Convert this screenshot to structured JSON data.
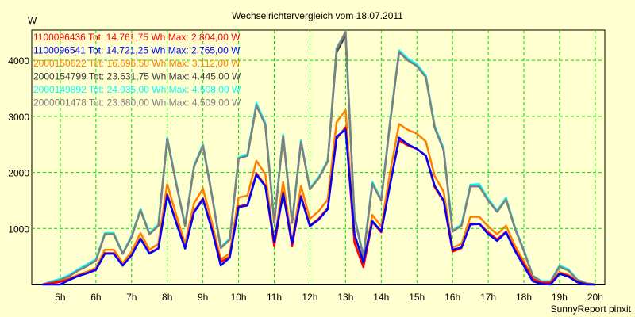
{
  "chart_data": {
    "type": "line",
    "title": "Wechselrichtervergleich vom 18.07.2011",
    "ylabel": "W",
    "xlabel": "",
    "footer": "SunnyReport pinxit",
    "xlim": [
      4.2,
      20.27
    ],
    "ylim": [
      0,
      4540
    ],
    "x_start": 4.5,
    "x_step": 0.25,
    "xticks": [
      5,
      6,
      7,
      8,
      9,
      10,
      11,
      12,
      13,
      14,
      15,
      16,
      17,
      18,
      19,
      20
    ],
    "xtick_labels": [
      "5h",
      "6h",
      "7h",
      "8h",
      "9h",
      "10h",
      "11h",
      "12h",
      "13h",
      "14h",
      "15h",
      "16h",
      "17h",
      "18h",
      "19h",
      "20h"
    ],
    "yticks": [
      1000,
      2000,
      3000,
      4000
    ],
    "ytick_labels": [
      "1000",
      "2000",
      "3000",
      "4000"
    ],
    "grid": true,
    "legend_position": "top-left",
    "series": [
      {
        "name": "2000154799",
        "legend": "2000154799 Tot: 23.631,75 Wh Max: 4.445,00 W",
        "color": "#3c3c3c",
        "values": [
          0,
          40,
          80,
          150,
          250,
          330,
          430,
          900,
          900,
          550,
          850,
          1330,
          900,
          1050,
          2600,
          1800,
          1050,
          2100,
          2480,
          1600,
          650,
          800,
          2250,
          2300,
          3200,
          2850,
          1100,
          2650,
          1100,
          2550,
          1700,
          1900,
          2200,
          4150,
          4445,
          1200,
          500,
          1800,
          1500,
          2900,
          4150,
          4000,
          3900,
          3700,
          2800,
          2400,
          950,
          1050,
          1750,
          1750,
          1500,
          1300,
          1520,
          1000,
          600,
          150,
          50,
          50,
          320,
          250,
          80,
          20,
          0
        ]
      },
      {
        "name": "2000149892",
        "legend": "2000149892 Tot: 24.035,00 Wh Max: 4.508,00 W",
        "color": "#00ffff",
        "values": [
          0,
          60,
          100,
          170,
          270,
          360,
          450,
          920,
          920,
          560,
          870,
          1350,
          920,
          1070,
          2620,
          1820,
          1070,
          2120,
          2500,
          1620,
          670,
          820,
          2270,
          2330,
          3240,
          2880,
          1120,
          2680,
          1120,
          2570,
          1720,
          1920,
          2220,
          4220,
          4508,
          1220,
          520,
          1830,
          1520,
          2930,
          4180,
          4030,
          3930,
          3730,
          2830,
          2430,
          970,
          1070,
          1780,
          1790,
          1530,
          1320,
          1550,
          1020,
          620,
          160,
          60,
          60,
          340,
          270,
          90,
          25,
          0
        ]
      },
      {
        "name": "2000001478",
        "legend": "2000001478 Tot: 23.680,00 Wh Max: 4.509,00 W",
        "color": "#808080",
        "values": [
          0,
          40,
          80,
          150,
          250,
          330,
          430,
          900,
          900,
          550,
          850,
          1330,
          900,
          1050,
          2600,
          1800,
          1050,
          2100,
          2480,
          1600,
          650,
          800,
          2250,
          2300,
          3200,
          2850,
          1100,
          2650,
          1100,
          2550,
          1700,
          1900,
          2200,
          4200,
          4509,
          1200,
          500,
          1800,
          1500,
          2900,
          4150,
          4000,
          3900,
          3700,
          2800,
          2400,
          950,
          1050,
          1750,
          1750,
          1500,
          1300,
          1520,
          1000,
          600,
          150,
          50,
          50,
          320,
          250,
          80,
          20,
          0
        ]
      },
      {
        "name": "2000150622",
        "legend": "2000150622 Tot: 16.696,50 Wh Max: 3.112,00 W",
        "color": "#ff8000",
        "values": [
          0,
          28,
          55,
          104,
          173,
          228,
          297,
          621,
          621,
          380,
          587,
          918,
          621,
          725,
          1794,
          1242,
          725,
          1449,
          1711,
          1104,
          449,
          552,
          1553,
          1587,
          2208,
          1967,
          759,
          1829,
          759,
          1760,
          1173,
          1311,
          1518,
          2898,
          3112,
          828,
          345,
          1242,
          1035,
          2001,
          2864,
          2760,
          2691,
          2553,
          1932,
          1656,
          656,
          725,
          1208,
          1208,
          1035,
          897,
          1049,
          690,
          414,
          104,
          35,
          35,
          221,
          173,
          55,
          14,
          0
        ]
      },
      {
        "name": "1100096436",
        "legend": "1100096436 Tot: 14.761,75 Wh Max: 2.804,00 W",
        "color": "#ff0000",
        "values": [
          0,
          25,
          50,
          93,
          155,
          205,
          267,
          558,
          558,
          341,
          527,
          825,
          558,
          651,
          1612,
          1116,
          651,
          1302,
          1538,
          992,
          403,
          496,
          1395,
          1426,
          1984,
          1767,
          682,
          1643,
          682,
          1581,
          1054,
          1178,
          1364,
          2604,
          2804,
          744,
          310,
          1116,
          930,
          1798,
          2573,
          2480,
          2418,
          2294,
          1736,
          1488,
          589,
          651,
          1085,
          1085,
          930,
          806,
          942,
          620,
          372,
          93,
          31,
          31,
          198,
          155,
          50,
          12,
          0
        ]
      },
      {
        "name": "1100096541",
        "legend": "1100096541 Tot: 14.721,25 Wh Max: 2.765,00 W",
        "color": "#0000ff",
        "values": [
          0,
          0,
          0,
          80,
          150,
          200,
          260,
          550,
          550,
          335,
          520,
          815,
          550,
          640,
          1590,
          1100,
          640,
          1285,
          1520,
          980,
          340,
          480,
          1380,
          1410,
          1960,
          1750,
          760,
          1620,
          740,
          1560,
          1040,
          1160,
          1345,
          2640,
          2765,
          900,
          400,
          1130,
          950,
          1780,
          2620,
          2500,
          2420,
          2300,
          1760,
          1500,
          620,
          660,
          1070,
          1080,
          900,
          780,
          930,
          600,
          330,
          60,
          10,
          0,
          190,
          140,
          40,
          0,
          0
        ]
      }
    ],
    "legend_order": [
      4,
      5,
      3,
      0,
      1,
      2
    ]
  }
}
